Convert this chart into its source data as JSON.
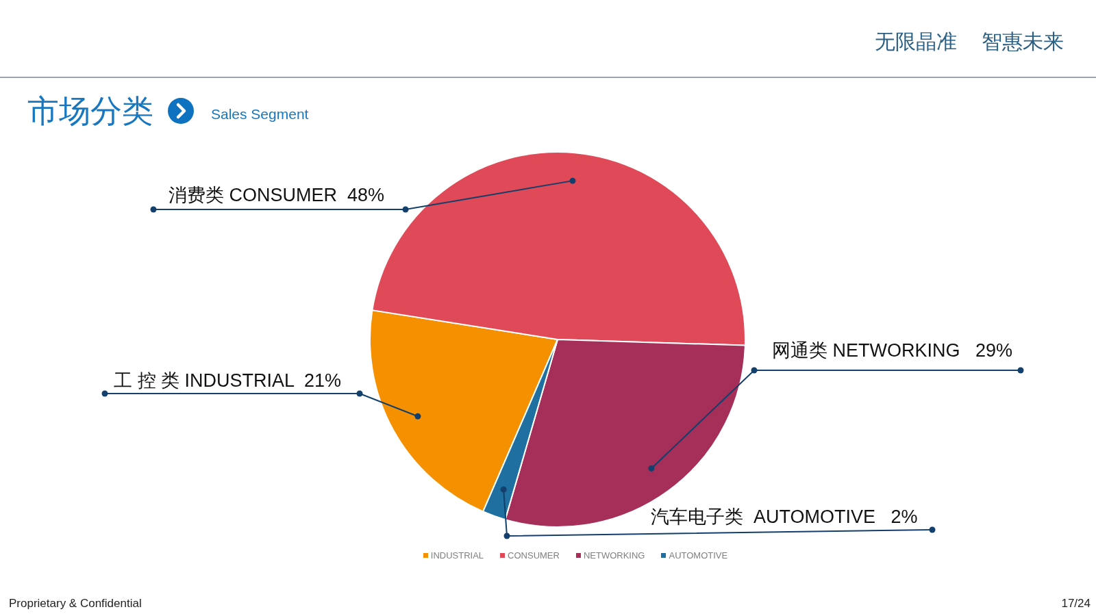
{
  "chart_data": {
    "type": "pie",
    "title": "市场分类",
    "subtitle": "Sales Segment",
    "categories": [
      "INDUSTRIAL",
      "CONSUMER",
      "NETWORKING",
      "AUTOMOTIVE"
    ],
    "values": [
      21,
      48,
      29,
      2
    ],
    "colors": [
      "#f59100",
      "#e04a58",
      "#a62f59",
      "#1f6fa0"
    ],
    "value_labels": [
      "工 控 类 INDUSTRIAL  21%",
      "消费类 CONSUMER  48%",
      "网通类 NETWORKING   29%",
      "汽车电子类  AUTOMOTIVE   2%"
    ],
    "legend": "bottom",
    "annotations": [
      "无限晶准",
      "智惠未来",
      "Proprietary & Confidential",
      "17/24"
    ]
  }
}
